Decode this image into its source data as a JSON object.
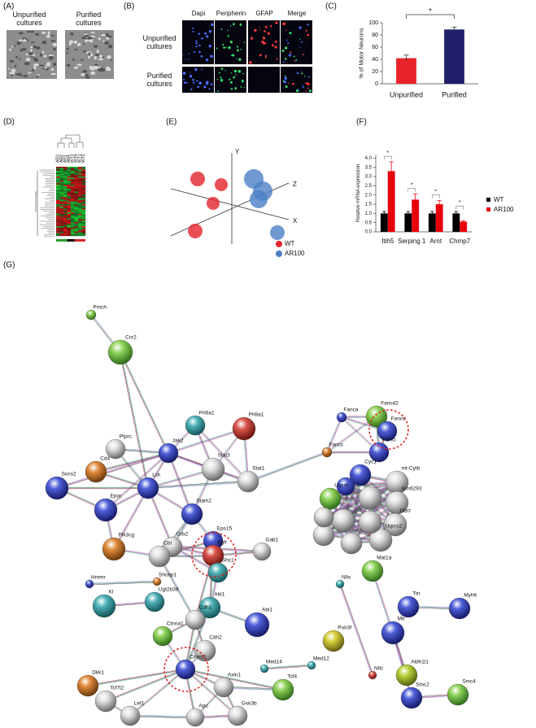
{
  "figure": {
    "panel_labels": [
      "(A)",
      "(B)",
      "(C)",
      "(D)",
      "(E)",
      "(F)",
      "(G)"
    ],
    "a": {
      "columns": [
        "Unpurified cultures",
        "Purified cultures"
      ]
    },
    "b": {
      "columns": [
        "Dapi",
        "Peripherin",
        "GFAP",
        "Merge"
      ],
      "rows": [
        "Unpurified cultures",
        "Purified cultures"
      ]
    },
    "d": {
      "samples": [
        "AR3",
        "AR2",
        "AR1",
        "AR4",
        "WT3",
        "WT4",
        "WT1",
        "WT2"
      ]
    },
    "e": {
      "axes": [
        "Y",
        "Z",
        "X"
      ],
      "legend": [
        {
          "name": "WT",
          "color": "#e3242b"
        },
        {
          "name": "AR100",
          "color": "#4b7fc4"
        }
      ]
    },
    "g": {
      "nodes": [
        "Pmch",
        "Ccr2",
        "Prl6a1",
        "Prl8a1",
        "Ptprc",
        "Cd4",
        "Jak2",
        "Stat3",
        "Stat1",
        "Socs2",
        "Lck",
        "Epor",
        "Stam2",
        "Eps15",
        "Grb2",
        "Pik3cg",
        "Cbl",
        "Egfr",
        "Gab1",
        "Shc1",
        "Hmmr",
        "Shcbp1",
        "Ugt2b38",
        "Kl",
        "Abl1",
        "Cdh1",
        "Abi1",
        "Ctnna1",
        "Cdh2",
        "Ctnnb1",
        "Dkk1",
        "Tcf7l2",
        "Lef1",
        "Axin1",
        "Apc",
        "Gsk3b",
        "Tcf4",
        "Med14",
        "Med12",
        "Fanca",
        "Fancd2",
        "Fance",
        "Fanci",
        "Fancc",
        "Cyc1",
        "mt-Cytb",
        "Uqcrb",
        "Gm6293",
        "Uqcr",
        "Uqcrc2",
        "Nfix",
        "Mat1a",
        "Ttn",
        "Myh6",
        "Mtr",
        "Polr3f",
        "Nfic",
        "Aldh1l1",
        "Smc2",
        "Smc4"
      ]
    }
  },
  "chart_data": [
    {
      "type": "bar",
      "ylabel": "% of Motor Neurons",
      "categories": [
        "Unpurified",
        "Purified"
      ],
      "values": [
        42,
        89
      ],
      "errors": [
        5,
        4
      ],
      "colors": [
        "#e8242a",
        "#1f1f6b"
      ],
      "ylim": [
        0,
        100
      ],
      "yticks": [
        0,
        20,
        40,
        60,
        80,
        100
      ],
      "annotation": "*"
    },
    {
      "type": "grouped_bar",
      "ylabel": "Relative mRNA expression",
      "categories": [
        "Itih5",
        "Serping 1",
        "Arnt",
        "Chmp7"
      ],
      "series": [
        {
          "name": "WT",
          "color": "#000000",
          "values": [
            1,
            1,
            1,
            1
          ],
          "errors": [
            0.1,
            0.1,
            0.1,
            0.1
          ]
        },
        {
          "name": "AR100",
          "color": "#e8000b",
          "values": [
            3.3,
            1.75,
            1.5,
            0.55
          ],
          "errors": [
            0.5,
            0.3,
            0.2,
            0.05
          ]
        }
      ],
      "ylim": [
        0,
        4.2
      ],
      "yticks": [
        {
          "value": 0,
          "label": "0.0"
        },
        {
          "value": 0.5,
          "label": "0.5"
        },
        {
          "value": 1,
          "label": "1.0"
        },
        {
          "value": 1.5,
          "label": "1.5"
        },
        {
          "value": 2,
          "label": "2.0"
        },
        {
          "value": 2.5,
          "label": "2.5"
        },
        {
          "value": 3,
          "label": "3.0"
        },
        {
          "value": 3.5,
          "label": "3.5"
        },
        {
          "value": 4,
          "label": "4.0"
        }
      ],
      "annotations": [
        "*",
        "*",
        "*",
        "*"
      ]
    }
  ]
}
